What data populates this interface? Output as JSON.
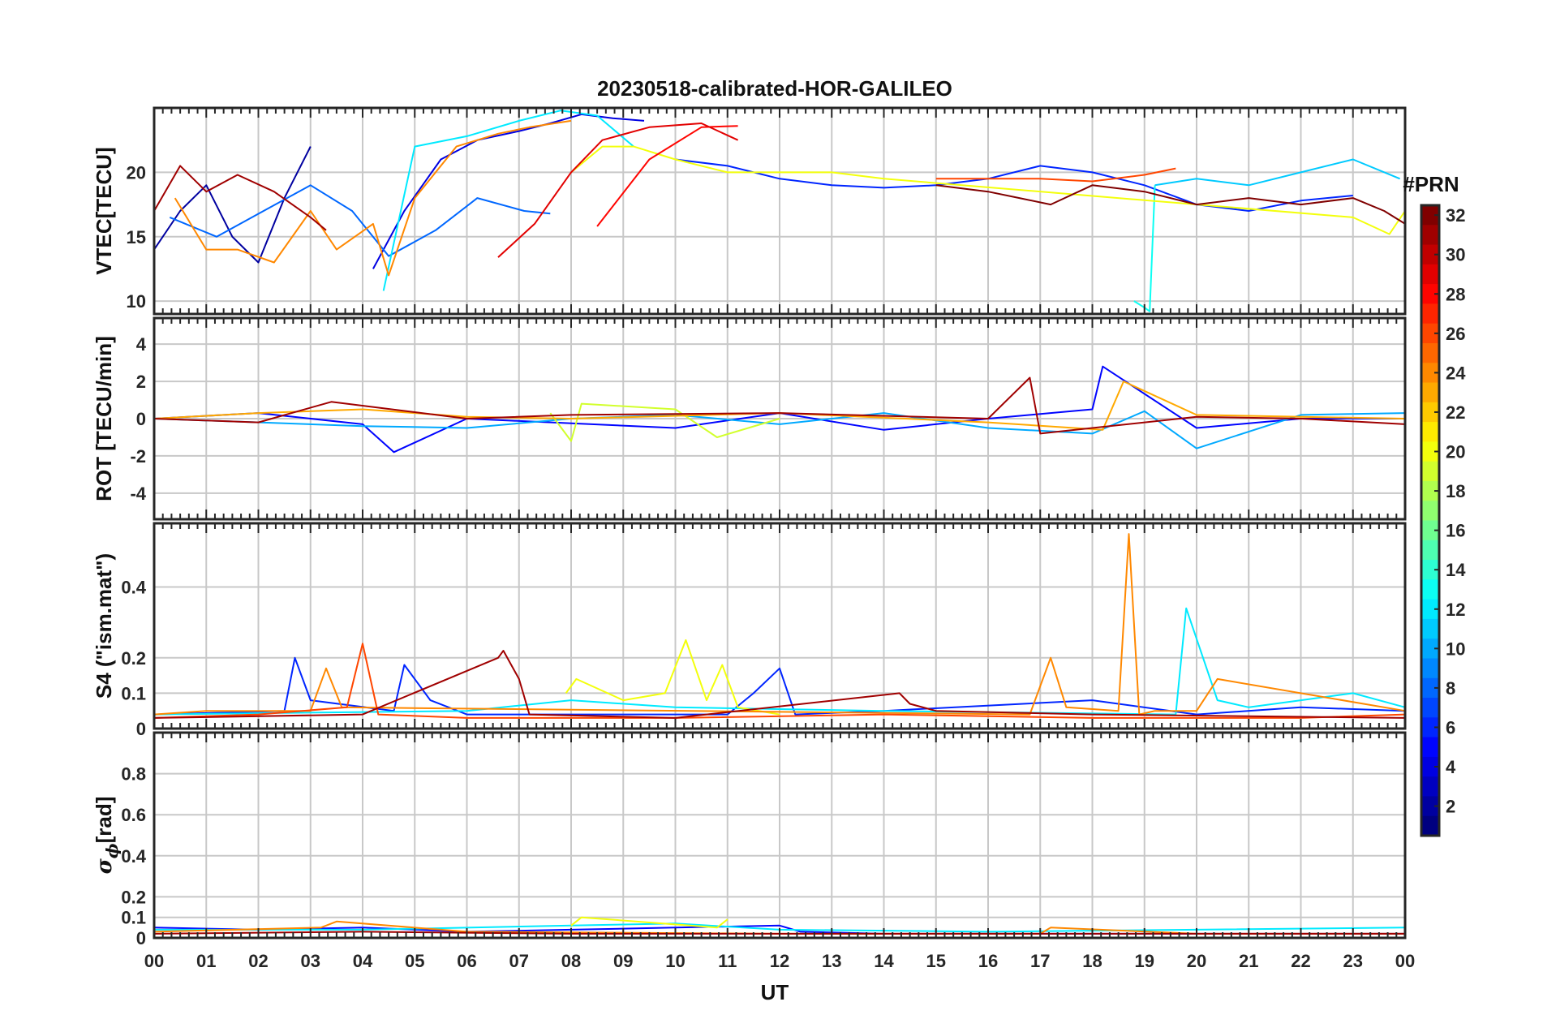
{
  "figure_title": "20230518-calibrated-HOR-GALILEO",
  "colors": {
    "prn_low": "#00008f",
    "prn_mid": "#7fff7f",
    "prn_high": "#800000",
    "grid": "#c8c8c8",
    "axis": "#262626"
  },
  "chart_data": [
    {
      "type": "line",
      "panel": "VTEC",
      "ylabel": "VTEC[TECU]",
      "ylim": [
        9,
        25
      ],
      "yticks": [
        10,
        15,
        20
      ],
      "ytick_labels": [
        "10",
        "15",
        "20"
      ],
      "series": [
        {
          "name": "PRN 2",
          "prn": 2,
          "x": [
            0,
            0.5,
            1,
            1.5,
            2,
            2.5,
            3.0
          ],
          "y": [
            14,
            17,
            19,
            15,
            13,
            18,
            22
          ]
        },
        {
          "name": "PRN 4",
          "prn": 4,
          "x": [
            4.2,
            4.8,
            5.5,
            6.2,
            7.0,
            7.6,
            8.2,
            8.8,
            9.4
          ],
          "y": [
            12.5,
            17,
            21,
            22.5,
            23.2,
            23.8,
            24.5,
            24.2,
            24
          ]
        },
        {
          "name": "PRN 6",
          "prn": 6,
          "x": [
            10.0,
            11,
            12,
            13,
            14,
            15,
            16,
            17,
            18,
            19,
            20,
            21,
            22,
            23
          ],
          "y": [
            21,
            20.5,
            19.5,
            19,
            18.8,
            19,
            19.5,
            20.5,
            20,
            19,
            17.5,
            17,
            17.8,
            18.2
          ]
        },
        {
          "name": "PRN 8",
          "prn": 8,
          "x": [
            0.3,
            1.2,
            2.1,
            3.0,
            3.8,
            4.5,
            5.4,
            6.2,
            7.1,
            7.6
          ],
          "y": [
            16.5,
            15,
            17,
            19,
            17,
            13.5,
            15.5,
            18,
            17,
            16.8
          ]
        },
        {
          "name": "PRN 12",
          "prn": 12,
          "x": [
            4.4,
            5.0,
            6.0,
            7.0,
            7.8,
            8.5,
            9.2
          ],
          "y": [
            10.8,
            22,
            22.8,
            24,
            24.8,
            24.4,
            22
          ]
        },
        {
          "name": "PRN 13",
          "prn": 13,
          "x": [
            18.8,
            19.0,
            19.1,
            19.2
          ],
          "y": [
            10,
            9.5,
            9.2,
            19
          ]
        },
        {
          "name": "PRN 11",
          "prn": 11,
          "x": [
            19.2,
            20,
            21,
            22,
            23,
            23.9
          ],
          "y": [
            19,
            19.5,
            19,
            20,
            21,
            19.5
          ]
        },
        {
          "name": "PRN 20",
          "prn": 20,
          "x": [
            8.0,
            8.6,
            9.2,
            10,
            11,
            12,
            13,
            14,
            23.0,
            23.7,
            24
          ],
          "y": [
            20,
            22,
            22,
            21,
            20,
            20,
            20,
            19.5,
            16.5,
            15.2,
            17
          ]
        },
        {
          "name": "PRN 24",
          "prn": 24,
          "x": [
            0.4,
            1.0,
            1.6,
            2.3,
            3.0,
            3.5,
            4.2,
            4.5,
            5.0,
            5.8,
            6.6,
            7.2,
            8.0
          ],
          "y": [
            18,
            14,
            14,
            13,
            17,
            14,
            16,
            12,
            18,
            22,
            23,
            23.5,
            24
          ]
        },
        {
          "name": "PRN 26",
          "prn": 26,
          "x": [
            15,
            16,
            17,
            18,
            19,
            19.6
          ],
          "y": [
            19.5,
            19.5,
            19.5,
            19.3,
            19.8,
            20.3
          ]
        },
        {
          "name": "PRN 28",
          "prn": 28,
          "x": [
            8.5,
            9.5,
            10.5,
            11.2
          ],
          "y": [
            15.8,
            21,
            23.5,
            23.6
          ]
        },
        {
          "name": "PRN 29",
          "prn": 29,
          "x": [
            6.6,
            7.3,
            8.0,
            8.6,
            9.5,
            10.5,
            11.2
          ],
          "y": [
            13.4,
            16,
            20,
            22.5,
            23.5,
            23.8,
            22.5
          ]
        },
        {
          "name": "PRN 31",
          "prn": 31,
          "x": [
            0,
            0.5,
            1.0,
            1.6,
            2.3,
            3.0,
            3.3
          ],
          "y": [
            17,
            20.5,
            18.5,
            19.8,
            18.5,
            16.5,
            15.5
          ]
        },
        {
          "name": "PRN 32",
          "prn": 32,
          "x": [
            15,
            16,
            16.6,
            17.2,
            18,
            19,
            20,
            21,
            22,
            23,
            23.6,
            24
          ],
          "y": [
            19,
            18.5,
            18,
            17.5,
            19,
            18.5,
            17.5,
            18,
            17.5,
            18,
            17,
            16
          ]
        }
      ]
    },
    {
      "type": "line",
      "panel": "ROT",
      "ylabel": "ROT [TECU/min]",
      "ylim": [
        -5.4,
        5.4
      ],
      "yticks": [
        -4,
        -2,
        0,
        2,
        4
      ],
      "ytick_labels": [
        "-4",
        "-2",
        "0",
        "2",
        "4"
      ],
      "series": [
        {
          "name": "PRN 5",
          "prn": 5,
          "x": [
            0,
            2,
            4,
            4.6,
            6,
            10,
            12,
            14,
            16,
            18,
            18.2,
            20,
            22,
            24
          ],
          "y": [
            0,
            0.3,
            -0.3,
            -1.8,
            0,
            -0.5,
            0.3,
            -0.6,
            0,
            0.5,
            2.8,
            -0.5,
            0,
            0
          ]
        },
        {
          "name": "PRN 10",
          "prn": 10,
          "x": [
            0,
            4,
            6,
            8,
            10,
            12,
            14,
            16,
            18,
            19,
            20,
            22,
            24
          ],
          "y": [
            0,
            -0.4,
            -0.5,
            0,
            0.2,
            -0.3,
            0.3,
            -0.5,
            -0.8,
            0.4,
            -1.6,
            0.2,
            0.3
          ]
        },
        {
          "name": "PRN 19",
          "prn": 19,
          "x": [
            7.6,
            8.0,
            8.2,
            10,
            10.8,
            12
          ],
          "y": [
            0.3,
            -1.2,
            0.8,
            0.5,
            -1.0,
            0
          ]
        },
        {
          "name": "PRN 23",
          "prn": 23,
          "x": [
            0,
            2,
            4,
            6,
            8,
            12,
            16,
            18.2,
            18.6,
            20,
            24
          ],
          "y": [
            0,
            0.3,
            0.5,
            0.1,
            0,
            0.3,
            -0.2,
            -0.6,
            2.0,
            0.2,
            0
          ]
        },
        {
          "name": "PRN 31",
          "prn": 31,
          "x": [
            0,
            2,
            3.4,
            6,
            8,
            12,
            16,
            16.8,
            17.0,
            20,
            22,
            24
          ],
          "y": [
            0,
            -0.2,
            0.9,
            0,
            0.2,
            0.3,
            0,
            2.2,
            -0.8,
            0.1,
            0,
            -0.3
          ]
        }
      ]
    },
    {
      "type": "line",
      "panel": "S4",
      "ylabel": "S4 (\"ism.mat\")",
      "ylim": [
        0,
        0.58
      ],
      "yticks": [
        0,
        0.1,
        0.2,
        0.4
      ],
      "ytick_labels": [
        "0",
        "0.1",
        "0.2",
        "0.4"
      ],
      "series": [
        {
          "name": "PRN 6",
          "prn": 6,
          "x": [
            0,
            2.5,
            2.7,
            3.0,
            4.6,
            4.8,
            5.3,
            6.0,
            11.0,
            11.5,
            12.0,
            12.3,
            14,
            18,
            20,
            22,
            24
          ],
          "y": [
            0.04,
            0.05,
            0.2,
            0.08,
            0.05,
            0.18,
            0.08,
            0.04,
            0.04,
            0.1,
            0.17,
            0.04,
            0.05,
            0.08,
            0.04,
            0.06,
            0.05
          ]
        },
        {
          "name": "PRN 12",
          "prn": 12,
          "x": [
            0,
            6,
            8,
            10,
            14,
            19.6,
            19.8,
            20.4,
            21,
            22,
            23,
            24
          ],
          "y": [
            0.04,
            0.05,
            0.08,
            0.06,
            0.05,
            0.04,
            0.34,
            0.08,
            0.06,
            0.08,
            0.1,
            0.06
          ]
        },
        {
          "name": "PRN 20",
          "prn": 20,
          "x": [
            7.9,
            8.1,
            9.0,
            9.8,
            10.2,
            10.6,
            10.9,
            11.2,
            12
          ],
          "y": [
            0.1,
            0.14,
            0.08,
            0.1,
            0.25,
            0.08,
            0.18,
            0.06,
            0.04
          ]
        },
        {
          "name": "PRN 24",
          "prn": 24,
          "x": [
            0,
            1.0,
            3.0,
            3.3,
            3.6,
            16.8,
            17.2,
            17.5,
            18.5,
            18.7,
            18.9,
            19.2,
            20,
            20.4,
            24
          ],
          "y": [
            0.04,
            0.05,
            0.05,
            0.17,
            0.06,
            0.04,
            0.2,
            0.06,
            0.05,
            0.55,
            0.04,
            0.05,
            0.05,
            0.14,
            0.05
          ]
        },
        {
          "name": "PRN 26",
          "prn": 26,
          "x": [
            0,
            2,
            3.7,
            4.0,
            4.3,
            6,
            10,
            14,
            18,
            22,
            24
          ],
          "y": [
            0.03,
            0.04,
            0.06,
            0.24,
            0.04,
            0.03,
            0.03,
            0.04,
            0.03,
            0.03,
            0.04
          ]
        },
        {
          "name": "PRN 31",
          "prn": 31,
          "x": [
            0,
            4,
            6.6,
            6.7,
            7.0,
            7.2,
            10,
            14.3,
            14.5,
            15,
            18,
            24
          ],
          "y": [
            0.03,
            0.04,
            0.2,
            0.22,
            0.14,
            0.04,
            0.03,
            0.1,
            0.07,
            0.05,
            0.04,
            0.03
          ]
        }
      ]
    },
    {
      "type": "line",
      "panel": "SigmaPhi",
      "ylabel_symbol": "σ",
      "ylabel_subscript": "ϕ",
      "ylabel_unit": "[rad]",
      "ylim": [
        0,
        1.0
      ],
      "yticks": [
        0,
        0.1,
        0.2,
        0.4,
        0.6,
        0.8
      ],
      "ytick_labels": [
        "0",
        "0.1",
        "0.2",
        "0.4",
        "0.6",
        "0.8"
      ],
      "series": [
        {
          "name": "PRN 5",
          "prn": 5,
          "x": [
            0,
            2,
            4,
            6,
            8,
            10,
            12,
            12.4,
            14,
            18,
            24
          ],
          "y": [
            0.05,
            0.04,
            0.05,
            0.03,
            0.04,
            0.05,
            0.06,
            0.03,
            0.02,
            0.02,
            0.02
          ]
        },
        {
          "name": "PRN 12",
          "prn": 12,
          "x": [
            0,
            4,
            8,
            10,
            12,
            16,
            20,
            24
          ],
          "y": [
            0.04,
            0.04,
            0.06,
            0.07,
            0.04,
            0.03,
            0.04,
            0.05
          ]
        },
        {
          "name": "PRN 20",
          "prn": 20,
          "x": [
            8,
            8.2,
            10.8,
            11
          ],
          "y": [
            0.06,
            0.1,
            0.05,
            0.09
          ]
        },
        {
          "name": "PRN 24",
          "prn": 24,
          "x": [
            0,
            3.2,
            3.5,
            6,
            12,
            17,
            17.2,
            20,
            24
          ],
          "y": [
            0.03,
            0.05,
            0.08,
            0.03,
            0.02,
            0.02,
            0.05,
            0.02,
            0.02
          ]
        },
        {
          "name": "PRN 31",
          "prn": 31,
          "x": [
            0,
            4,
            8,
            12,
            16,
            20,
            24
          ],
          "y": [
            0.02,
            0.03,
            0.02,
            0.02,
            0.02,
            0.02,
            0.02
          ]
        }
      ]
    }
  ],
  "x_axis": {
    "label": "UT",
    "xlim": [
      0,
      24
    ],
    "tick_labels": [
      "00",
      "01",
      "02",
      "03",
      "04",
      "05",
      "06",
      "07",
      "08",
      "09",
      "10",
      "11",
      "12",
      "13",
      "14",
      "15",
      "16",
      "17",
      "18",
      "19",
      "20",
      "21",
      "22",
      "23",
      "00"
    ]
  },
  "colorbar": {
    "label": "#PRN",
    "range": [
      1,
      32
    ],
    "tick_labels": [
      "2",
      "4",
      "6",
      "8",
      "10",
      "12",
      "14",
      "16",
      "18",
      "20",
      "22",
      "24",
      "26",
      "28",
      "30",
      "32"
    ],
    "tick_values": [
      2,
      4,
      6,
      8,
      10,
      12,
      14,
      16,
      18,
      20,
      22,
      24,
      26,
      28,
      30,
      32
    ]
  }
}
